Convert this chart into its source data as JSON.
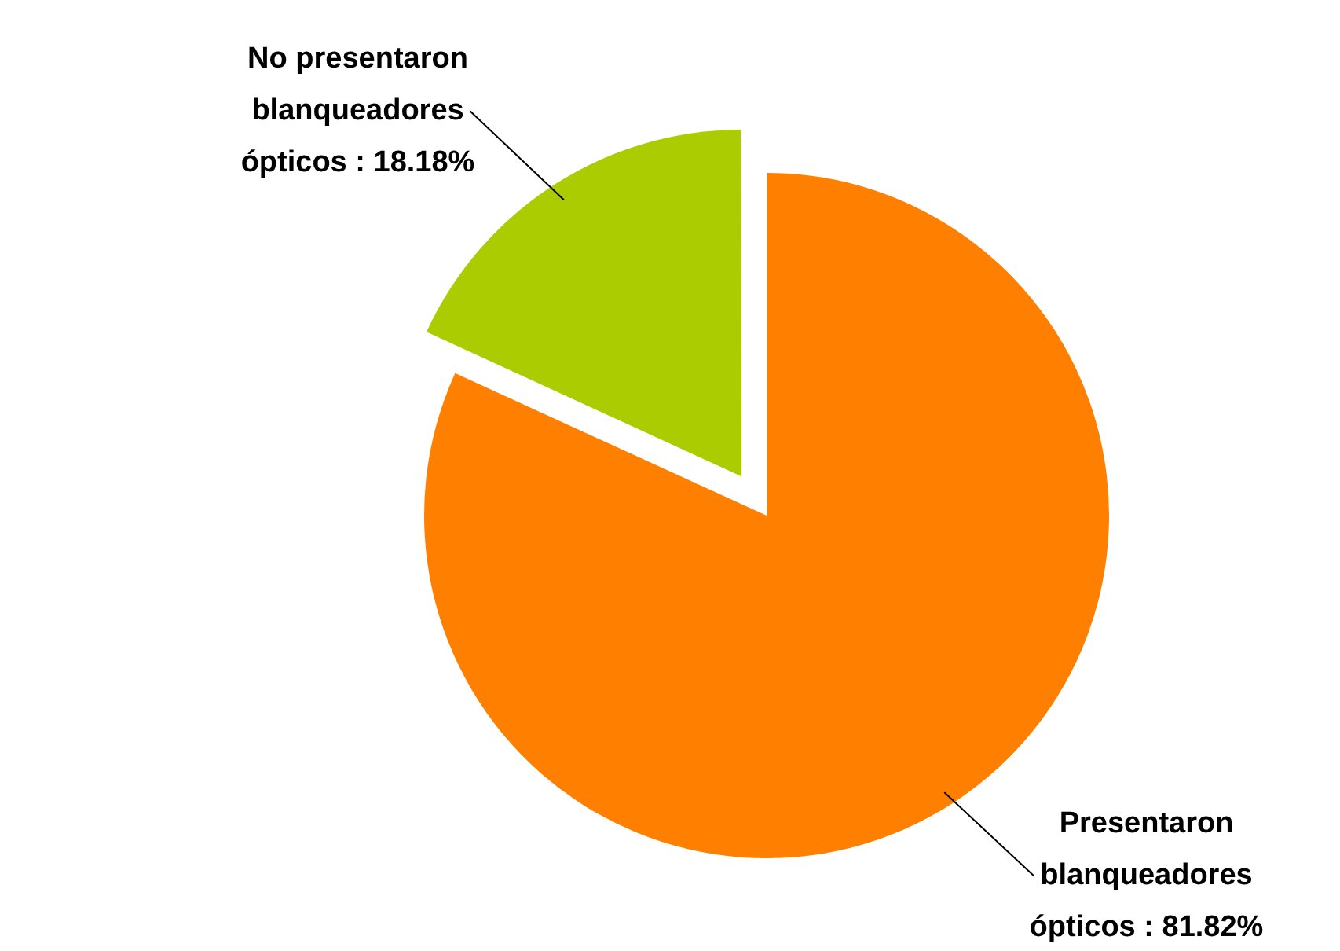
{
  "chart_data": {
    "type": "pie",
    "categories": [
      "Presentaron blanqueadores ópticos",
      "No presentaron blanqueadores ópticos"
    ],
    "values": [
      81.82,
      18.18
    ],
    "value_labels": [
      ": 81.82%",
      ": 18.18%"
    ],
    "colors": [
      "#ff8000",
      "#aacc00"
    ],
    "legend": false
  }
}
